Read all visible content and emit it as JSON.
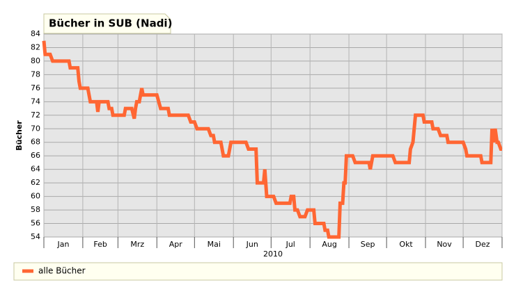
{
  "chart_data": {
    "type": "line",
    "title": "Bücher in SUB (Nadi)",
    "ylabel": "Bücher",
    "xlabel": "2010",
    "categories": [
      "Jan",
      "Feb",
      "Mrz",
      "Apr",
      "Mai",
      "Jun",
      "Jul",
      "Aug",
      "Sep",
      "Okt",
      "Nov",
      "Dez"
    ],
    "x": [
      0,
      1,
      5,
      7,
      20,
      21,
      27,
      28,
      29,
      35,
      37,
      42,
      43,
      44,
      51,
      52,
      54,
      55,
      64,
      65,
      70,
      72,
      73,
      74,
      76,
      78,
      79,
      90,
      91.5,
      93,
      99,
      100,
      115,
      117,
      120,
      122,
      131,
      133,
      135,
      136,
      141,
      143,
      147,
      149,
      161,
      163,
      169,
      170,
      175,
      176,
      177.5,
      183,
      185,
      196,
      197,
      199,
      200,
      202,
      204,
      208,
      210,
      215,
      216,
      223,
      224,
      226,
      227,
      235,
      236,
      238,
      239,
      240,
      241,
      246,
      248,
      259,
      260,
      262,
      278,
      280,
      291,
      292,
      294,
      296,
      302,
      303,
      309,
      310,
      314,
      316,
      321,
      322,
      334,
      336,
      337,
      348,
      349,
      356,
      357,
      358,
      359.5,
      361,
      362,
      364,
      365
    ],
    "series": [
      {
        "name": "alle Bücher",
        "color": "#ff6633",
        "values": [
          83,
          81,
          81,
          80,
          80,
          79,
          79,
          77,
          76,
          76,
          74,
          74,
          72.5,
          74,
          74,
          73,
          73,
          72,
          72,
          73,
          73,
          71.5,
          73,
          74,
          74,
          76,
          75,
          75,
          74,
          73,
          73,
          72,
          72,
          71,
          71,
          70,
          70,
          69,
          69,
          68,
          68,
          66,
          66,
          68,
          68,
          67,
          67,
          62,
          62,
          64,
          60,
          60,
          59,
          59,
          60,
          60,
          58,
          58,
          57,
          57,
          58,
          58,
          56,
          56,
          55,
          55,
          54,
          54,
          59,
          59,
          62,
          62,
          66,
          66,
          65,
          65,
          64,
          66,
          66,
          65,
          65,
          67,
          68,
          72,
          72,
          71,
          71,
          70,
          70,
          69,
          69,
          68,
          68,
          67,
          66,
          66,
          65,
          65,
          70,
          68,
          70,
          68,
          68,
          67,
          67
        ]
      }
    ],
    "xlim": [
      0,
      365
    ],
    "xticks": [
      0,
      31,
      59,
      90,
      120,
      151,
      181,
      212,
      243,
      273,
      304,
      334,
      365
    ],
    "ylim": [
      54,
      84
    ],
    "yticks": [
      54,
      56,
      58,
      60,
      62,
      64,
      66,
      68,
      70,
      72,
      74,
      76,
      78,
      80,
      82,
      84
    ],
    "grid": true
  }
}
